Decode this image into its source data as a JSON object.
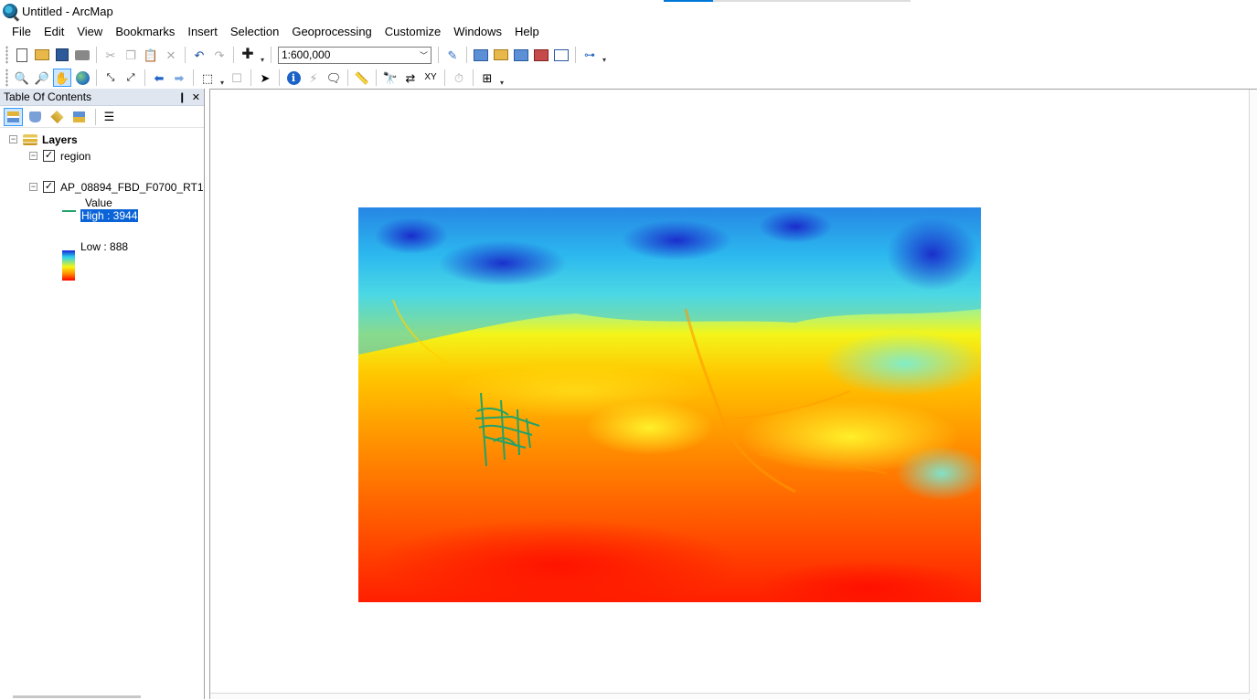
{
  "window": {
    "title": "Untitled - ArcMap"
  },
  "menu": [
    "File",
    "Edit",
    "View",
    "Bookmarks",
    "Insert",
    "Selection",
    "Geoprocessing",
    "Customize",
    "Windows",
    "Help"
  ],
  "toolbar": {
    "scale_value": "1:600,000"
  },
  "toc": {
    "title": "Table Of Contents",
    "pin_glyph": "❙",
    "close_glyph": "✕",
    "root_label": "Layers",
    "layers": [
      {
        "name": "region",
        "checked": true,
        "symbol": "line",
        "symbol_color": "#1fa36a"
      },
      {
        "name": "AP_08894_FBD_F0700_RT1",
        "checked": true,
        "legend_field": "Value",
        "high_label": "High : 3944",
        "low_label": "Low : 888"
      }
    ]
  },
  "glyphs": {
    "expand": "−",
    "check": "✓"
  },
  "colors": {
    "selection_highlight": "#0a64d8",
    "ramp": [
      "#1a24d6",
      "#2ad2ee",
      "#f8f510",
      "#ff8a00",
      "#ff0000"
    ],
    "region_line": "#1fa36a"
  },
  "icons": {
    "toolbar_standard": [
      "new-document-icon",
      "open-icon",
      "save-icon",
      "print-icon",
      "cut-icon",
      "copy-icon",
      "paste-icon",
      "delete-icon",
      "undo-icon",
      "redo-icon",
      "add-data-icon",
      "scale-dropdown",
      "editor-icon",
      "table-of-contents-icon",
      "catalog-icon",
      "search-icon",
      "arctoolbox-icon",
      "python-icon",
      "model-builder-icon"
    ],
    "toolbar_tools": [
      "zoom-in-icon",
      "zoom-out-icon",
      "pan-icon",
      "full-extent-icon",
      "fixed-zoom-in-icon",
      "fixed-zoom-out-icon",
      "back-extent-icon",
      "forward-extent-icon",
      "select-features-icon",
      "clear-selection-icon",
      "select-elements-icon",
      "identify-icon",
      "hyperlink-icon",
      "html-popup-icon",
      "measure-icon",
      "find-icon",
      "find-route-icon",
      "go-to-xy-icon",
      "time-slider-icon",
      "viewer-window-icon"
    ]
  }
}
